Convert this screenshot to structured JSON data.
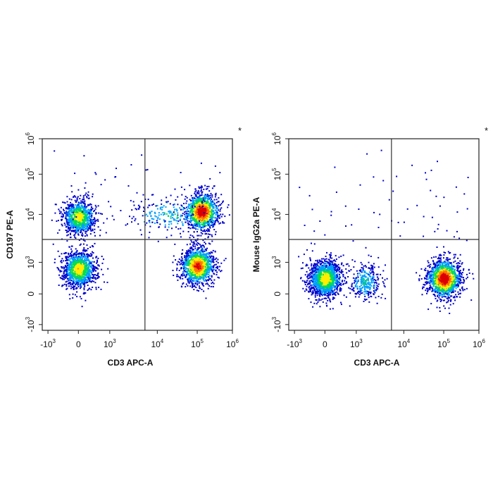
{
  "chart_data": [
    {
      "type": "scatter",
      "plot": "flow-cytometry-density",
      "title": "",
      "marker": "*",
      "xlabel": "CD3 APC-A",
      "ylabel": "CD197 PE-A",
      "x_scale": "biexponential",
      "y_scale": "biexponential",
      "xlim": [
        -1000,
        1000000
      ],
      "ylim": [
        -1000,
        1000000
      ],
      "x_ticks": [
        {
          "base": "-10",
          "exp": "3",
          "value": -1000
        },
        {
          "base": "0",
          "exp": "",
          "value": 0
        },
        {
          "base": "10",
          "exp": "3",
          "value": 1000
        },
        {
          "base": "10",
          "exp": "4",
          "value": 10000
        },
        {
          "base": "10",
          "exp": "5",
          "value": 100000
        },
        {
          "base": "10",
          "exp": "6",
          "value": 1000000
        }
      ],
      "y_ticks": [
        {
          "base": "-10",
          "exp": "3",
          "value": -1000
        },
        {
          "base": "0",
          "exp": "",
          "value": 0
        },
        {
          "base": "10",
          "exp": "3",
          "value": 1000
        },
        {
          "base": "10",
          "exp": "4",
          "value": 10000
        },
        {
          "base": "10",
          "exp": "5",
          "value": 100000
        },
        {
          "base": "10",
          "exp": "6",
          "value": 1000000
        }
      ],
      "gate": {
        "x": 5500,
        "y": 3000
      },
      "populations": [
        {
          "x": 0,
          "y": 9000,
          "count": 900,
          "peak": 0.55
        },
        {
          "x": 0,
          "y": 800,
          "count": 1200,
          "peak": 0.6
        },
        {
          "x": 130000,
          "y": 12000,
          "count": 1100,
          "peak": 1.0
        },
        {
          "x": 100000,
          "y": 900,
          "count": 1300,
          "peak": 0.85
        },
        {
          "x": 20000,
          "y": 10000,
          "count": 200,
          "peak": 0.3
        }
      ],
      "colormap": [
        "#0000cc",
        "#00a0ff",
        "#00dd55",
        "#ffee00",
        "#ff7700",
        "#dd0000"
      ]
    },
    {
      "type": "scatter",
      "plot": "flow-cytometry-density",
      "title": "",
      "marker": "*",
      "xlabel": "CD3 APC-A",
      "ylabel": "Mouse IgG2a PE-A",
      "x_scale": "biexponential",
      "y_scale": "biexponential",
      "xlim": [
        -1000,
        1000000
      ],
      "ylim": [
        -1000,
        1000000
      ],
      "x_ticks": [
        {
          "base": "-10",
          "exp": "3",
          "value": -1000
        },
        {
          "base": "0",
          "exp": "",
          "value": 0
        },
        {
          "base": "10",
          "exp": "3",
          "value": 1000
        },
        {
          "base": "10",
          "exp": "4",
          "value": 10000
        },
        {
          "base": "10",
          "exp": "5",
          "value": 100000
        },
        {
          "base": "10",
          "exp": "6",
          "value": 1000000
        }
      ],
      "y_ticks": [
        {
          "base": "-10",
          "exp": "3",
          "value": -1000
        },
        {
          "base": "0",
          "exp": "",
          "value": 0
        },
        {
          "base": "10",
          "exp": "3",
          "value": 1000
        },
        {
          "base": "10",
          "exp": "4",
          "value": 10000
        },
        {
          "base": "10",
          "exp": "5",
          "value": 100000
        },
        {
          "base": "10",
          "exp": "6",
          "value": 1000000
        }
      ],
      "gate": {
        "x": 5500,
        "y": 3000
      },
      "populations": [
        {
          "x": 0,
          "y": 500,
          "count": 1500,
          "peak": 0.6
        },
        {
          "x": 100000,
          "y": 500,
          "count": 1500,
          "peak": 1.0
        },
        {
          "x": 1500,
          "y": 400,
          "count": 300,
          "peak": 0.3
        }
      ],
      "colormap": [
        "#0000cc",
        "#00a0ff",
        "#00dd55",
        "#ffee00",
        "#ff7700",
        "#dd0000"
      ]
    }
  ]
}
